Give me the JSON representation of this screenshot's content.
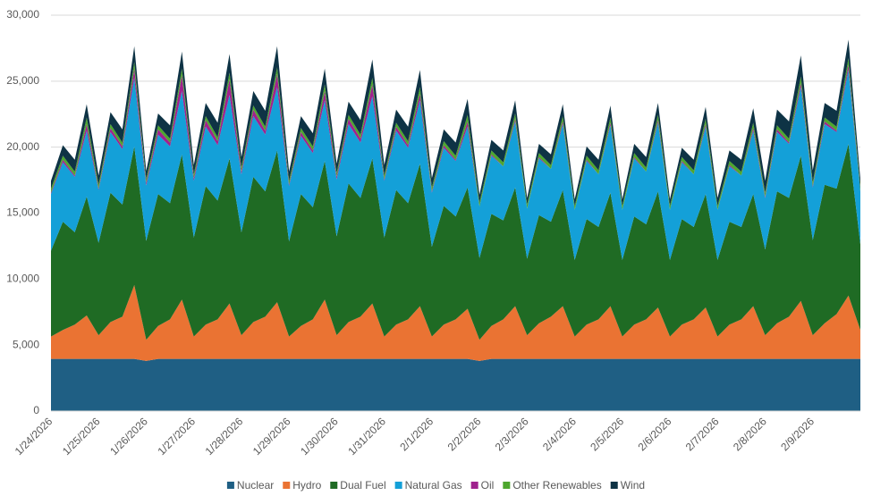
{
  "chart_data": {
    "type": "stacked_area",
    "categories": [
      "1/24/2026",
      null,
      null,
      null,
      "1/25/2026",
      null,
      null,
      null,
      "1/26/2026",
      null,
      null,
      null,
      "1/27/2026",
      null,
      null,
      null,
      "1/28/2026",
      null,
      null,
      null,
      "1/29/2026",
      null,
      null,
      null,
      "1/30/2026",
      null,
      null,
      null,
      "1/31/2026",
      null,
      null,
      null,
      "2/1/2026",
      null,
      null,
      null,
      "2/2/2026",
      null,
      null,
      null,
      "2/3/2026",
      null,
      null,
      null,
      "2/4/2026",
      null,
      null,
      null,
      "2/5/2026",
      null,
      null,
      null,
      "2/6/2026",
      null,
      null,
      null,
      "2/7/2026",
      null,
      null,
      null,
      "2/8/2026",
      null,
      null,
      null,
      "2/9/2026",
      null,
      null,
      null,
      null
    ],
    "series": [
      {
        "name": "Nuclear",
        "color": "#1f5f84",
        "values": [
          3950,
          3950,
          3950,
          3950,
          3950,
          3950,
          3950,
          3950,
          3800,
          3950,
          3950,
          3950,
          3950,
          3950,
          3950,
          3950,
          3950,
          3950,
          3950,
          3950,
          3950,
          3950,
          3950,
          3950,
          3950,
          3950,
          3950,
          3950,
          3950,
          3950,
          3950,
          3950,
          3950,
          3950,
          3950,
          3950,
          3800,
          3950,
          3950,
          3950,
          3950,
          3950,
          3950,
          3950,
          3950,
          3950,
          3950,
          3950,
          3950,
          3950,
          3950,
          3950,
          3950,
          3950,
          3950,
          3950,
          3950,
          3950,
          3950,
          3950,
          3950,
          3950,
          3950,
          3950,
          3950,
          3950,
          3950,
          3950,
          3950
        ]
      },
      {
        "name": "Hydro",
        "color": "#ea7333",
        "values": [
          1700,
          2200,
          2600,
          3300,
          1800,
          2800,
          3200,
          5600,
          1600,
          2500,
          3000,
          4500,
          1700,
          2600,
          3000,
          4200,
          1800,
          2800,
          3200,
          4300,
          1700,
          2500,
          3000,
          4500,
          1800,
          2800,
          3200,
          4200,
          1700,
          2600,
          3000,
          4000,
          1700,
          2600,
          3000,
          3800,
          1600,
          2500,
          3000,
          4000,
          1800,
          2700,
          3200,
          4000,
          1700,
          2600,
          3000,
          4000,
          1700,
          2600,
          3000,
          3900,
          1700,
          2600,
          3000,
          3900,
          1700,
          2600,
          3000,
          4000,
          1800,
          2700,
          3200,
          4400,
          1800,
          2700,
          3400,
          4800,
          2200
        ]
      },
      {
        "name": "Dual Fuel",
        "color": "#1f6b24",
        "values": [
          6500,
          8200,
          7000,
          9000,
          7000,
          9800,
          8500,
          10500,
          7500,
          10000,
          8800,
          11000,
          7500,
          10500,
          9000,
          11000,
          7800,
          11000,
          9500,
          11500,
          7200,
          10000,
          8500,
          10500,
          7500,
          10500,
          9000,
          11000,
          7500,
          10200,
          8800,
          10800,
          6800,
          9000,
          7800,
          9200,
          6200,
          8500,
          7500,
          9000,
          5800,
          8200,
          7200,
          8800,
          5800,
          8000,
          7000,
          8600,
          5800,
          8200,
          7200,
          8800,
          5800,
          8000,
          7000,
          8600,
          5800,
          7800,
          7000,
          8500,
          6500,
          10000,
          9000,
          11000,
          7200,
          10500,
          9500,
          11500,
          6500
        ]
      },
      {
        "name": "Natural Gas",
        "color": "#14a0d8",
        "values": [
          4300,
          4500,
          4200,
          5000,
          4000,
          4600,
          4200,
          5200,
          4200,
          4500,
          4300,
          4800,
          4300,
          4500,
          4200,
          4800,
          4400,
          4600,
          4300,
          4800,
          4200,
          4400,
          4100,
          4600,
          4300,
          4500,
          4200,
          4700,
          4300,
          4500,
          4200,
          4800,
          4100,
          4400,
          4200,
          4600,
          3900,
          4400,
          4100,
          5000,
          3800,
          4300,
          4000,
          5000,
          3800,
          4400,
          4000,
          5100,
          3800,
          4400,
          4000,
          5200,
          3800,
          4300,
          4000,
          5100,
          3800,
          4200,
          3900,
          4800,
          3900,
          4500,
          4100,
          5200,
          4000,
          4600,
          4300,
          5600,
          4000
        ]
      },
      {
        "name": "Oil",
        "color": "#a0228e",
        "values": [
          100,
          200,
          100,
          500,
          100,
          300,
          200,
          700,
          200,
          400,
          300,
          1200,
          200,
          500,
          300,
          1200,
          200,
          500,
          300,
          1000,
          100,
          300,
          200,
          700,
          200,
          400,
          300,
          900,
          100,
          300,
          200,
          500,
          100,
          200,
          100,
          400,
          0,
          100,
          0,
          200,
          0,
          100,
          0,
          200,
          0,
          100,
          0,
          200,
          0,
          100,
          0,
          200,
          0,
          100,
          0,
          200,
          0,
          100,
          0,
          200,
          100,
          200,
          100,
          300,
          100,
          200,
          100,
          400,
          0
        ]
      },
      {
        "name": "Other Renewables",
        "color": "#4ea72e",
        "values": [
          300,
          300,
          300,
          500,
          300,
          300,
          300,
          500,
          300,
          300,
          300,
          500,
          300,
          300,
          300,
          500,
          300,
          300,
          300,
          500,
          300,
          300,
          300,
          500,
          300,
          300,
          300,
          500,
          300,
          300,
          300,
          500,
          300,
          300,
          300,
          500,
          300,
          300,
          300,
          400,
          300,
          300,
          300,
          400,
          300,
          300,
          300,
          400,
          300,
          300,
          300,
          400,
          300,
          300,
          300,
          400,
          300,
          300,
          300,
          400,
          300,
          300,
          300,
          500,
          300,
          300,
          300,
          500,
          300
        ]
      },
      {
        "name": "Wind",
        "color": "#0e3345",
        "values": [
          600,
          800,
          900,
          1000,
          700,
          900,
          1000,
          1200,
          600,
          900,
          1000,
          1300,
          700,
          1000,
          1100,
          1400,
          800,
          1100,
          1200,
          1600,
          700,
          900,
          1000,
          1200,
          700,
          1000,
          1100,
          1400,
          800,
          1000,
          1100,
          1300,
          700,
          900,
          1000,
          1200,
          600,
          800,
          900,
          1000,
          500,
          700,
          800,
          900,
          500,
          700,
          800,
          900,
          500,
          700,
          800,
          900,
          500,
          700,
          800,
          900,
          600,
          800,
          900,
          1100,
          900,
          1200,
          1300,
          1600,
          900,
          1100,
          1200,
          1400,
          600
        ]
      }
    ],
    "ylim": [
      0,
      30000
    ],
    "yticks": [
      0,
      {
        "value": 5000,
        "label": "5,000"
      },
      {
        "value": 10000,
        "label": "10,000"
      },
      {
        "value": 15000,
        "label": "15,000"
      },
      {
        "value": 20000,
        "label": "20,000"
      },
      {
        "value": 25000,
        "label": "25,000"
      },
      {
        "value": 30000,
        "label": "30,000"
      }
    ],
    "grid": true,
    "legend": "bottom"
  }
}
